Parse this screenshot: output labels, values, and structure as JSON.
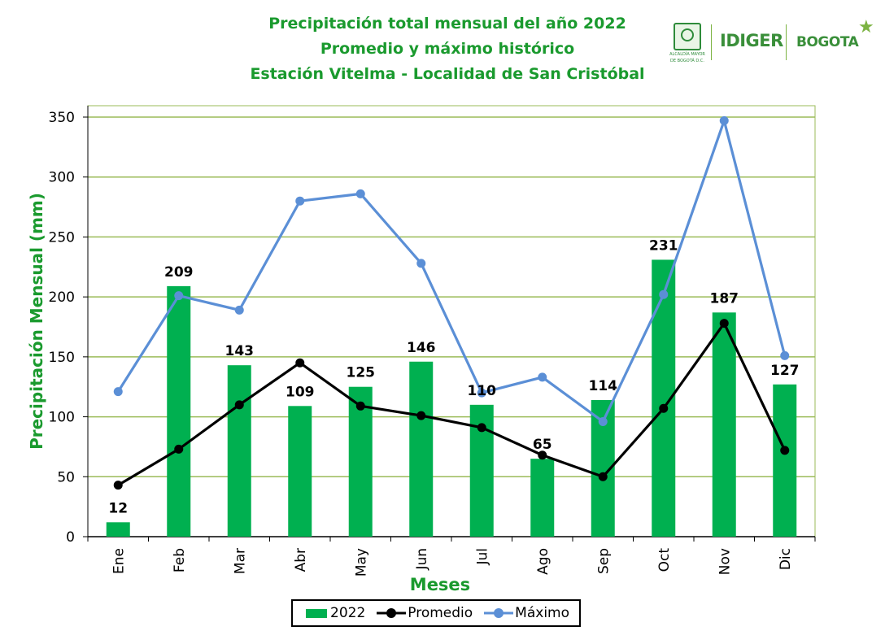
{
  "header": {
    "title_lines": [
      "Precipitación total mensual del año 2022",
      "Promedio y máximo histórico",
      "Estación Vitelma - Localidad de San Cristóbal"
    ]
  },
  "logos": {
    "alcaldia_lines": [
      "ALCALDÍA MAYOR",
      "DE BOGOTÁ D.C."
    ],
    "idiger": "IDIGER",
    "bogota": "BOGOTA",
    "brand_green": "#3a8f3a"
  },
  "chart_data": {
    "type": "bar",
    "title": "",
    "xlabel": "Meses",
    "ylabel": "Precipitación Mensual (mm)",
    "ylim": [
      0,
      350
    ],
    "yticks": [
      0,
      50,
      100,
      150,
      200,
      250,
      300,
      350
    ],
    "grid": true,
    "legend_position": "bottom",
    "categories": [
      "Ene",
      "Feb",
      "Mar",
      "Abr",
      "May",
      "Jun",
      "Jul",
      "Ago",
      "Sep",
      "Oct",
      "Nov",
      "Dic"
    ],
    "series": [
      {
        "name": "2022",
        "kind": "bar",
        "color": "#00b050",
        "values": [
          12,
          209,
          143,
          109,
          125,
          146,
          110,
          65,
          114,
          231,
          187,
          127
        ],
        "labels": [
          "12",
          "209",
          "143",
          "109",
          "125",
          "146",
          "110",
          "65",
          "114",
          "231",
          "187",
          "127"
        ]
      },
      {
        "name": "Promedio",
        "kind": "line",
        "color": "#000000",
        "values": [
          43,
          73,
          110,
          145,
          109,
          101,
          91,
          68,
          50,
          107,
          178,
          72
        ]
      },
      {
        "name": "Máximo",
        "kind": "line",
        "color": "#5b8fd6",
        "values": [
          121,
          201,
          189,
          280,
          286,
          228,
          120,
          133,
          96,
          202,
          347,
          151
        ]
      }
    ],
    "colors": {
      "grid": "#9bbb59",
      "axis_label": "#1a9a2e",
      "plot_border": "#9bbb59"
    }
  }
}
